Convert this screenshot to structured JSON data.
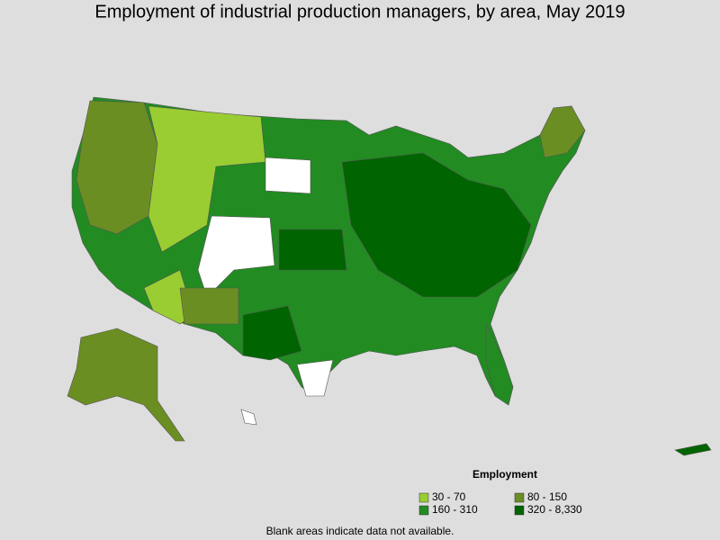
{
  "title": "Employment of industrial production managers, by area, May 2019",
  "legend": {
    "title": "Employment",
    "items": [
      {
        "label": "30 - 70",
        "color": "#9acd32"
      },
      {
        "label": "80 - 150",
        "color": "#6b8e23"
      },
      {
        "label": "160 - 310",
        "color": "#228b22"
      },
      {
        "label": "320 - 8,330",
        "color": "#006400"
      }
    ]
  },
  "footnote": "Blank areas indicate data not available."
}
